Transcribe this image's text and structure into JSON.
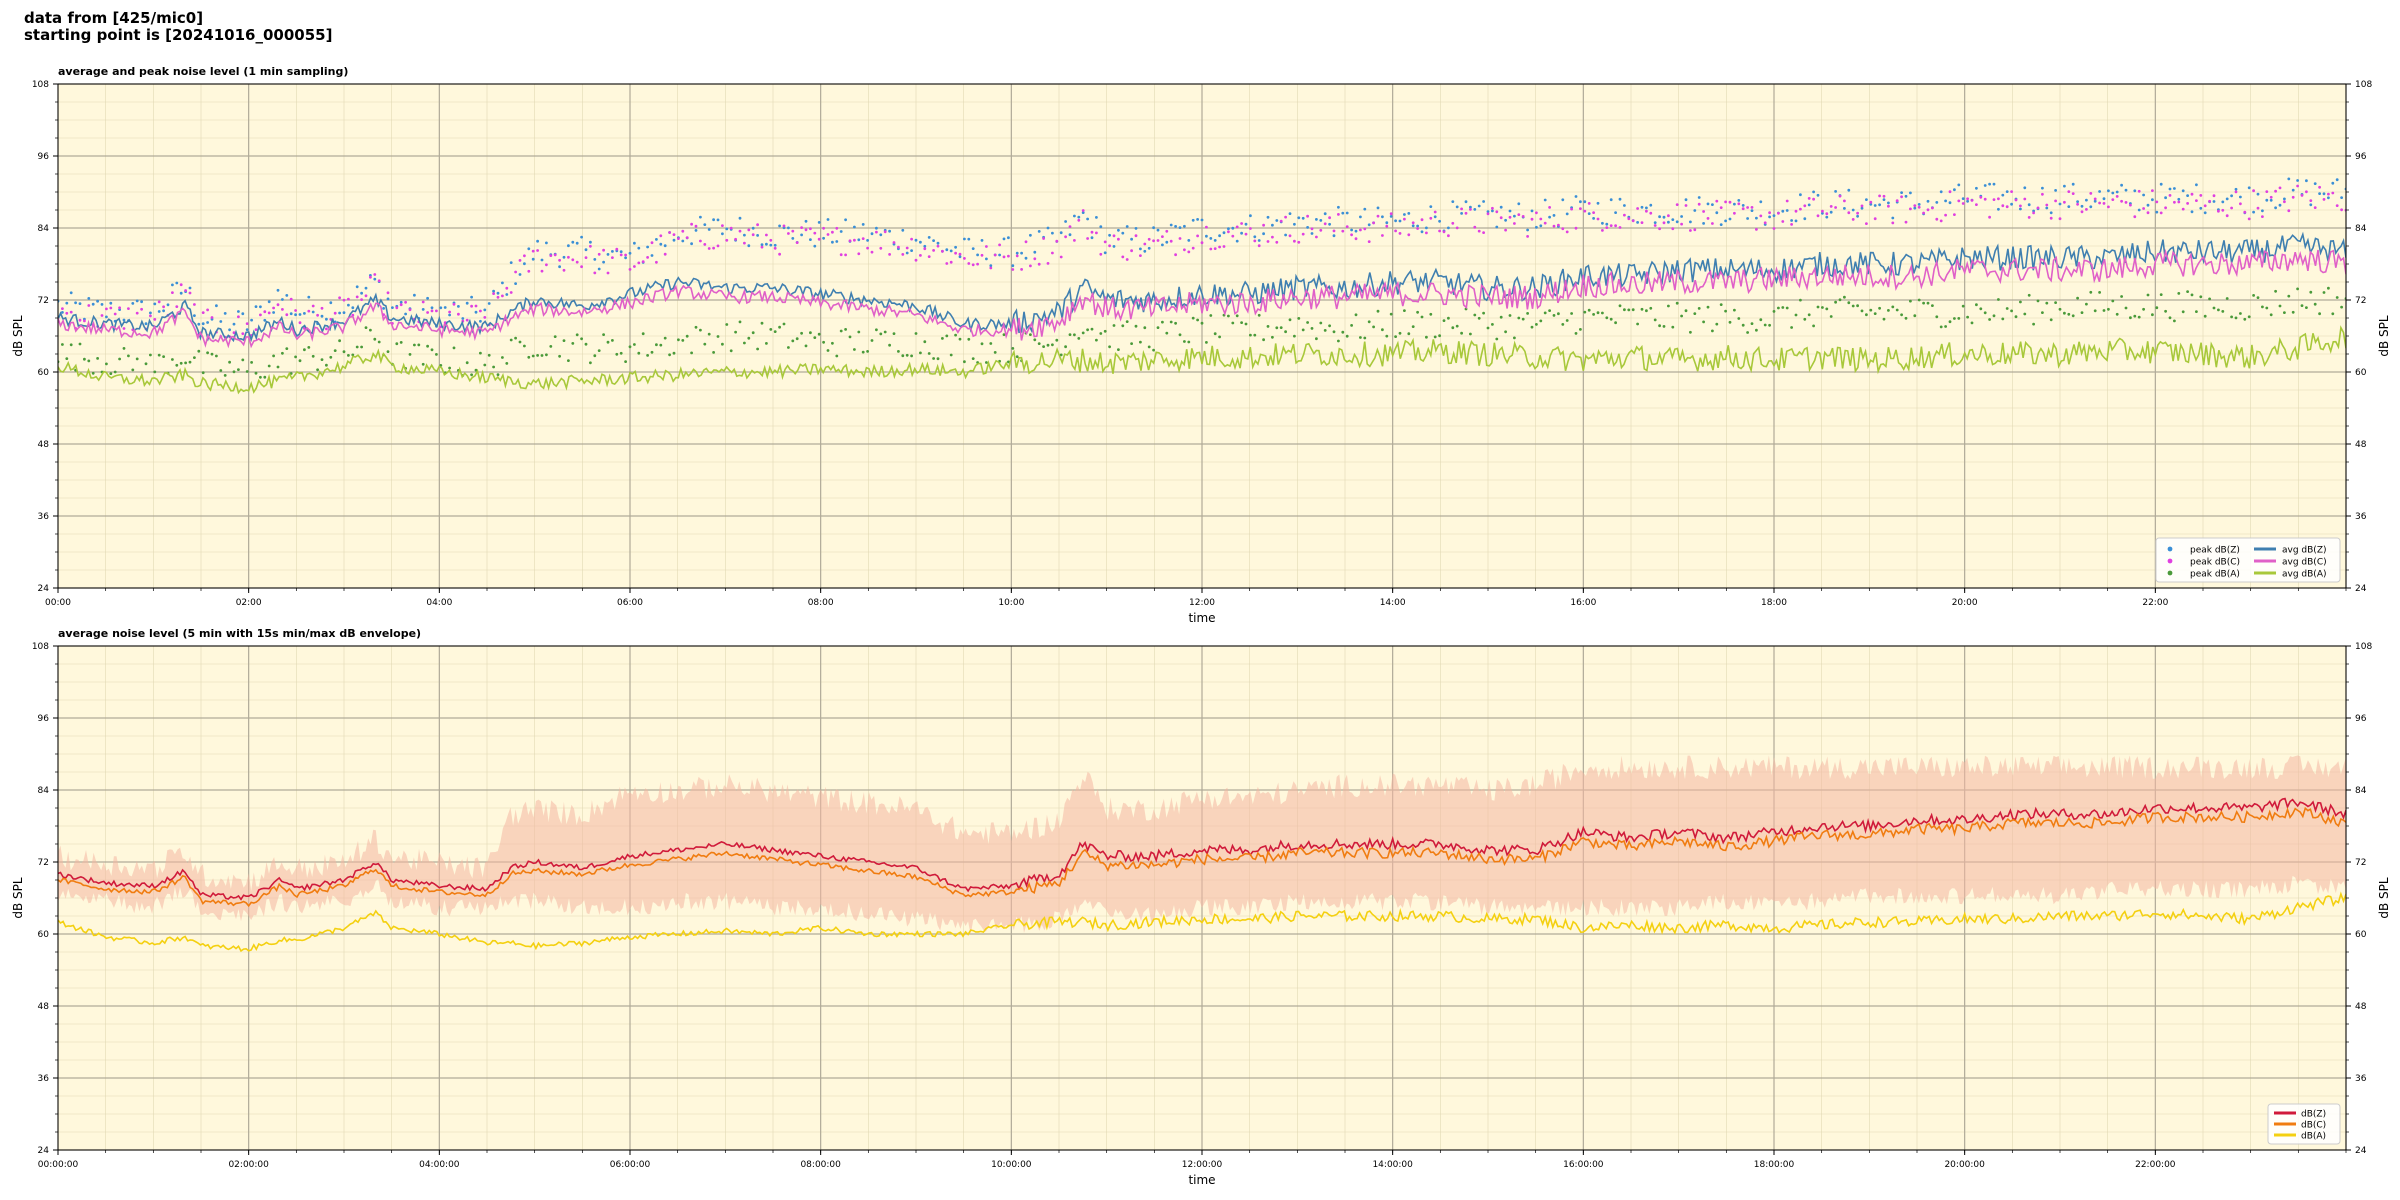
{
  "header": {
    "line1": "data from [425/mic0]",
    "line2": "starting point is [20241016_000055]"
  },
  "chart_data": [
    {
      "type": "line",
      "title": "average and peak noise level (1 min sampling)",
      "xlabel": "time",
      "ylabel": "dB SPL",
      "ylabel_right": "dB SPL",
      "xlim_hours": [
        0,
        24
      ],
      "ylim": [
        24,
        108
      ],
      "yticks": [
        24,
        36,
        48,
        60,
        72,
        84,
        96,
        108
      ],
      "xtick_labels": [
        "00:00",
        "02:00",
        "04:00",
        "06:00",
        "08:00",
        "10:00",
        "12:00",
        "14:00",
        "16:00",
        "18:00",
        "20:00",
        "22:00"
      ],
      "grid": true,
      "legend_position": "lower-right",
      "legend_columns": 2,
      "x_hours": [
        0,
        0.5,
        1,
        1.33,
        1.5,
        2,
        2.33,
        2.5,
        3,
        3.33,
        3.5,
        4,
        4.5,
        4.75,
        5,
        5.5,
        6,
        6.5,
        7,
        7.5,
        8,
        8.5,
        9,
        9.5,
        10,
        10.5,
        10.75,
        11,
        11.5,
        12,
        12.5,
        13,
        13.5,
        14,
        14.5,
        15,
        15.5,
        16,
        16.5,
        17,
        17.5,
        18,
        18.5,
        19,
        19.5,
        20,
        20.5,
        21,
        21.5,
        22,
        22.5,
        23,
        23.5,
        24
      ],
      "series": [
        {
          "name": "peak dB(Z)",
          "kind": "scatter",
          "color": "#3a8fd6",
          "values": [
            71,
            70,
            70,
            74,
            69,
            68,
            73,
            70,
            71,
            75,
            71,
            70,
            70,
            76,
            80,
            80,
            79,
            83,
            84,
            83,
            83,
            83,
            82,
            80,
            80,
            82,
            86,
            82,
            82,
            84,
            84,
            85,
            85,
            85,
            86,
            86,
            86,
            87,
            87,
            87,
            87,
            87,
            88,
            88,
            88,
            89,
            89,
            89,
            89,
            89,
            89,
            89,
            90,
            90
          ]
        },
        {
          "name": "peak dB(C)",
          "kind": "scatter",
          "color": "#e040e0",
          "values": [
            70,
            69,
            69,
            73,
            68,
            67,
            72,
            69,
            70,
            74,
            70,
            69,
            69,
            75,
            79,
            79,
            78,
            82,
            83,
            82,
            82,
            82,
            81,
            79,
            79,
            81,
            85,
            81,
            81,
            83,
            83,
            84,
            84,
            84,
            85,
            85,
            85,
            86,
            86,
            86,
            86,
            86,
            87,
            87,
            87,
            88,
            88,
            88,
            88,
            88,
            88,
            88,
            89,
            89
          ]
        },
        {
          "name": "peak dB(A)",
          "kind": "scatter",
          "color": "#4a9a3a",
          "values": [
            63,
            62,
            61,
            63,
            61,
            60,
            62,
            62,
            63,
            66,
            63,
            62,
            61,
            63,
            65,
            64,
            64,
            65,
            66,
            66,
            65,
            65,
            65,
            64,
            64,
            65,
            68,
            66,
            66,
            67,
            67,
            68,
            67,
            68,
            68,
            68,
            68,
            69,
            69,
            69,
            69,
            69,
            70,
            70,
            70,
            70,
            70,
            71,
            71,
            71,
            71,
            71,
            72,
            72
          ]
        },
        {
          "name": "avg dB(Z)",
          "kind": "line",
          "color": "#3f7fb0",
          "values": [
            69,
            68,
            67.5,
            71,
            66.5,
            66,
            68.5,
            67,
            68.5,
            72,
            69,
            68,
            67.5,
            70,
            72,
            71,
            73,
            75,
            74,
            74,
            73,
            72,
            71,
            68,
            68,
            70,
            74,
            72,
            72,
            73,
            73,
            74,
            74,
            75,
            75,
            74,
            74,
            76,
            76,
            77,
            77,
            77,
            78,
            78,
            78,
            79,
            79,
            79,
            79,
            80,
            80,
            80,
            81,
            80
          ]
        },
        {
          "name": "avg dB(C)",
          "kind": "line",
          "color": "#e060c8",
          "values": [
            68,
            67,
            66.5,
            70,
            65.5,
            65,
            67.5,
            66,
            67.5,
            71,
            68,
            67,
            66.5,
            69,
            70.5,
            70,
            71.5,
            73.5,
            72.5,
            72.5,
            71.5,
            70.5,
            69.5,
            67,
            67,
            68.5,
            72.5,
            70.5,
            70.5,
            71.5,
            71.5,
            72.5,
            72.5,
            73,
            73,
            72.5,
            72.5,
            74.5,
            74.5,
            75,
            75,
            75.5,
            76,
            76,
            76,
            77,
            77,
            77,
            77,
            78,
            78,
            78,
            79,
            78
          ]
        },
        {
          "name": "avg dB(A)",
          "kind": "line",
          "color": "#a8c83a",
          "values": [
            61,
            59,
            58.5,
            59.5,
            58,
            57.5,
            58.5,
            59,
            61,
            63,
            61,
            60,
            59,
            58.5,
            58,
            58.5,
            59,
            59.5,
            60,
            60,
            60.5,
            60,
            60.5,
            60,
            61.5,
            62,
            62,
            61.5,
            62,
            62.5,
            62.5,
            63,
            63,
            63,
            63.5,
            63,
            62.5,
            62,
            62.5,
            62,
            62.5,
            62,
            62.5,
            62,
            62.5,
            63,
            63,
            63,
            63.5,
            63.5,
            63,
            62.5,
            64,
            66
          ]
        }
      ]
    },
    {
      "type": "line",
      "title": "average noise level (5 min with 15s min/max dB envelope)",
      "xlabel": "time",
      "ylabel": "dB SPL",
      "ylabel_right": "dB SPL",
      "xlim_hours": [
        0,
        24
      ],
      "ylim": [
        24,
        108
      ],
      "yticks": [
        24,
        36,
        48,
        60,
        72,
        84,
        96,
        108
      ],
      "xtick_labels": [
        "00:00:00",
        "02:00:00",
        "04:00:00",
        "06:00:00",
        "08:00:00",
        "10:00:00",
        "12:00:00",
        "14:00:00",
        "16:00:00",
        "18:00:00",
        "20:00:00",
        "22:00:00"
      ],
      "grid": true,
      "legend_position": "lower-right",
      "legend_columns": 1,
      "x_hours": [
        0,
        0.5,
        1,
        1.33,
        1.5,
        2,
        2.33,
        2.5,
        3,
        3.33,
        3.5,
        4,
        4.5,
        4.75,
        5,
        5.5,
        6,
        6.5,
        7,
        7.5,
        8,
        8.5,
        9,
        9.5,
        10,
        10.5,
        10.75,
        11,
        11.5,
        12,
        12.5,
        13,
        13.5,
        14,
        14.5,
        15,
        15.5,
        16,
        16.5,
        17,
        17.5,
        18,
        18.5,
        19,
        19.5,
        20,
        20.5,
        21,
        21.5,
        22,
        22.5,
        23,
        23.5,
        24
      ],
      "envelope": {
        "color": "#f4b6a2",
        "upper": [
          72,
          71,
          70,
          73,
          69,
          68,
          71,
          70,
          71,
          75,
          72,
          71,
          70,
          79,
          80,
          79,
          83,
          83,
          84,
          83,
          82,
          81,
          80,
          76,
          76,
          78,
          86,
          80,
          80,
          82,
          82,
          83,
          84,
          84,
          84,
          83,
          84,
          87,
          87,
          87,
          87,
          87,
          87,
          87,
          87,
          87,
          87,
          87,
          87,
          87,
          87,
          87,
          87,
          87
        ],
        "lower": [
          67,
          66,
          65,
          68,
          64,
          64,
          66,
          65,
          66,
          69,
          66,
          65,
          65,
          66,
          66,
          65,
          65,
          66,
          66,
          65,
          65,
          64,
          63,
          62,
          62,
          63,
          66,
          64,
          64,
          65,
          65,
          66,
          66,
          66,
          66,
          65,
          65,
          65,
          65,
          65,
          66,
          66,
          66,
          67,
          67,
          67,
          67,
          67,
          68,
          68,
          68,
          68,
          69,
          68
        ]
      },
      "series": [
        {
          "name": "dB(Z)",
          "color": "#d01a3a",
          "values": [
            70,
            68.5,
            68,
            70.5,
            66.5,
            66,
            69,
            67.5,
            69,
            72,
            69,
            68,
            67.5,
            71,
            72,
            71,
            73,
            74,
            75,
            74,
            73,
            72,
            71,
            67.5,
            68,
            70,
            75,
            73,
            73,
            74,
            74,
            75,
            75,
            75,
            75,
            74,
            74,
            77,
            76,
            77,
            76,
            77,
            78,
            78,
            79,
            79,
            80,
            80,
            80,
            81,
            81,
            81,
            82,
            80
          ]
        },
        {
          "name": "dB(C)",
          "color": "#f07c10",
          "values": [
            69,
            67.5,
            67,
            69.5,
            65.5,
            65,
            68,
            66.5,
            68,
            71,
            68,
            67,
            66.5,
            70,
            70.5,
            70,
            71.5,
            72.5,
            73.5,
            72.5,
            71.5,
            70.5,
            69.5,
            66.5,
            67,
            68.5,
            73.5,
            71.5,
            71.5,
            72.5,
            72.5,
            73.5,
            73.5,
            73.5,
            73.5,
            72.5,
            72.5,
            75.5,
            74.5,
            75.5,
            74.5,
            75.5,
            76.5,
            76.5,
            77.5,
            77.5,
            78.5,
            78.5,
            78.5,
            79.5,
            79.5,
            79.5,
            80.5,
            78.5
          ]
        },
        {
          "name": "dB(A)",
          "color": "#f4d010",
          "values": [
            62,
            59.5,
            58.5,
            59.5,
            58,
            57.5,
            59,
            59,
            61,
            63.5,
            61,
            60,
            58.5,
            58.5,
            58,
            58.5,
            59.5,
            60,
            60.5,
            60,
            61,
            60,
            60,
            60,
            61.5,
            62,
            62,
            61.5,
            62,
            62.5,
            62.5,
            63,
            63,
            63,
            63,
            62.5,
            62.5,
            61,
            61.5,
            61,
            61.5,
            61,
            61.5,
            62,
            62,
            62.5,
            62.5,
            63,
            63,
            63.5,
            63,
            62.5,
            64.5,
            66
          ]
        }
      ]
    }
  ]
}
